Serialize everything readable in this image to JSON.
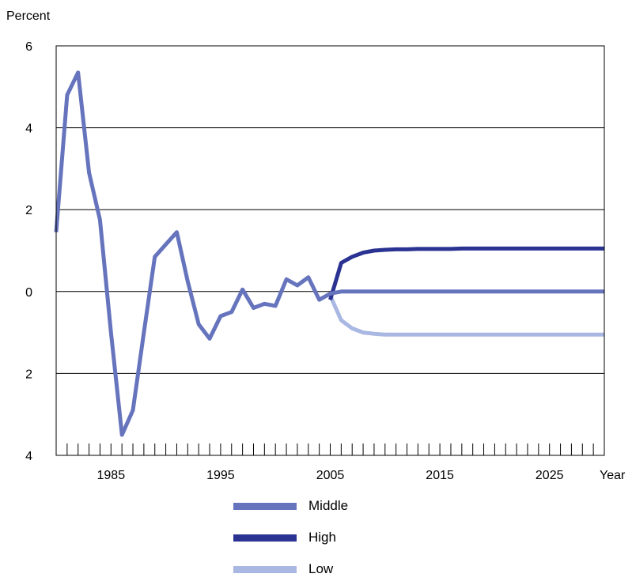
{
  "chart_data": {
    "type": "line",
    "ylabel": "Percent",
    "xlabel": "Year",
    "ylim": [
      -4,
      6
    ],
    "xlim": [
      1980,
      2030
    ],
    "y_ticks": [
      6,
      4,
      2,
      0,
      -2,
      -4
    ],
    "y_tick_labels": [
      "6",
      "4",
      "2",
      "0",
      "2",
      "4"
    ],
    "x_ticks": [
      1985,
      1995,
      2005,
      2015,
      2025
    ],
    "x_tick_labels": [
      "1985",
      "1995",
      "2005",
      "2015",
      "2025"
    ],
    "grid": "horizontal",
    "legend_position": "bottom",
    "series": [
      {
        "name": "Middle",
        "color": "#6674bd",
        "x": [
          1980,
          1981,
          1982,
          1983,
          1984,
          1985,
          1986,
          1987,
          1988,
          1989,
          1990,
          1991,
          1992,
          1993,
          1994,
          1995,
          1996,
          1997,
          1998,
          1999,
          2000,
          2001,
          2002,
          2003,
          2004,
          2005,
          2006,
          2007,
          2008,
          2009,
          2010,
          2011,
          2012,
          2013,
          2014,
          2015,
          2016,
          2017,
          2018,
          2019,
          2020,
          2021,
          2022,
          2023,
          2024,
          2025,
          2026,
          2027,
          2028,
          2029,
          2030
        ],
        "values": [
          1.45,
          4.8,
          5.35,
          2.9,
          1.75,
          -1.0,
          -3.5,
          -2.9,
          -1.0,
          0.85,
          1.15,
          1.45,
          0.25,
          -0.8,
          -1.15,
          -0.6,
          -0.5,
          0.05,
          -0.4,
          -0.3,
          -0.35,
          0.3,
          0.15,
          0.35,
          -0.2,
          -0.05,
          0.0,
          0.0,
          0.0,
          0.0,
          0.0,
          0.0,
          0.0,
          0.0,
          0.0,
          0.0,
          0.0,
          0.0,
          0.0,
          0.0,
          0.0,
          0.0,
          0.0,
          0.0,
          0.0,
          0.0,
          0.0,
          0.0,
          0.0,
          0.0,
          0.0
        ]
      },
      {
        "name": "High",
        "color": "#2a3391",
        "x": [
          2005,
          2006,
          2007,
          2008,
          2009,
          2010,
          2011,
          2012,
          2013,
          2014,
          2015,
          2016,
          2017,
          2018,
          2019,
          2020,
          2021,
          2022,
          2023,
          2024,
          2025,
          2026,
          2027,
          2028,
          2029,
          2030
        ],
        "values": [
          -0.2,
          0.7,
          0.85,
          0.95,
          1.0,
          1.02,
          1.03,
          1.03,
          1.04,
          1.04,
          1.04,
          1.04,
          1.05,
          1.05,
          1.05,
          1.05,
          1.05,
          1.05,
          1.05,
          1.05,
          1.05,
          1.05,
          1.05,
          1.05,
          1.05,
          1.05
        ]
      },
      {
        "name": "Low",
        "color": "#a9b7e3",
        "x": [
          2005,
          2006,
          2007,
          2008,
          2009,
          2010,
          2011,
          2012,
          2013,
          2014,
          2015,
          2016,
          2017,
          2018,
          2019,
          2020,
          2021,
          2022,
          2023,
          2024,
          2025,
          2026,
          2027,
          2028,
          2029,
          2030
        ],
        "values": [
          -0.1,
          -0.7,
          -0.9,
          -1.0,
          -1.03,
          -1.05,
          -1.05,
          -1.05,
          -1.05,
          -1.05,
          -1.05,
          -1.05,
          -1.05,
          -1.05,
          -1.05,
          -1.05,
          -1.05,
          -1.05,
          -1.05,
          -1.05,
          -1.05,
          -1.05,
          -1.05,
          -1.05,
          -1.05,
          -1.05
        ]
      }
    ]
  }
}
